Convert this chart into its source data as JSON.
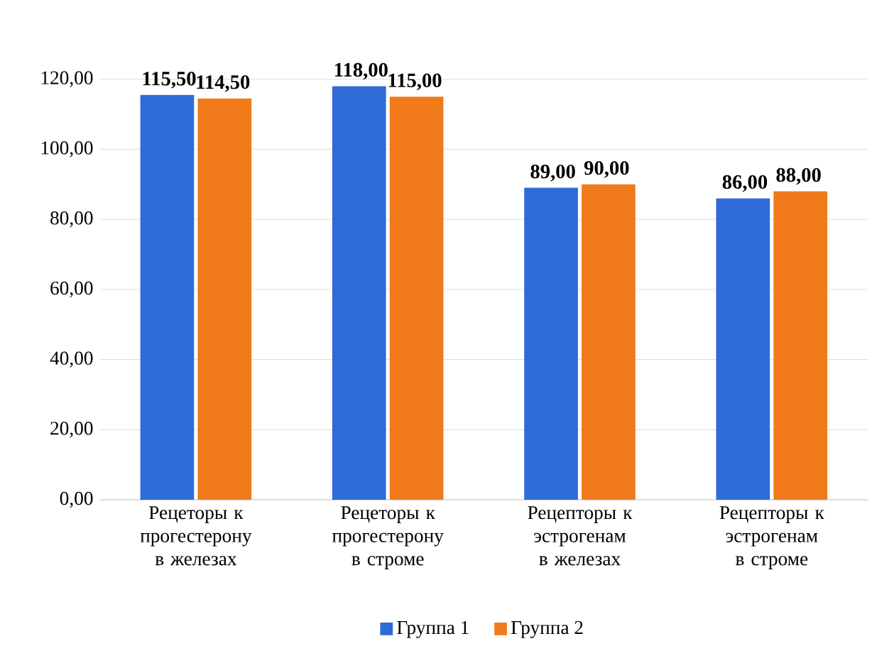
{
  "chart_data": {
    "type": "bar",
    "categories": [
      "Рецеторы к прогестерону в железах",
      "Рецеторы к прогестерону в строме",
      "Рецепторы к эстрогенам в железах",
      "Рецепторы к эстрогенам в строме"
    ],
    "series": [
      {
        "name": "Группа 1",
        "color": "#2e6bd6",
        "values": [
          115.5,
          118,
          89,
          86
        ],
        "value_labels": [
          "115,50",
          "118,00",
          "89,00",
          "86,00"
        ]
      },
      {
        "name": "Группа 2",
        "color": "#f07a1a",
        "values": [
          114.5,
          115,
          90,
          88
        ],
        "value_labels": [
          "114,50",
          "115,00",
          "90,00",
          "88,00"
        ]
      }
    ],
    "ylim": [
      0,
      120
    ],
    "yticks": [
      {
        "value": 0,
        "label": "0,00"
      },
      {
        "value": 20,
        "label": "20,00"
      },
      {
        "value": 40,
        "label": "40,00"
      },
      {
        "value": 60,
        "label": "60,00"
      },
      {
        "value": 80,
        "label": "80,00"
      },
      {
        "value": 100,
        "label": "100,00"
      },
      {
        "value": 120,
        "label": "120,00"
      }
    ],
    "grid": "y",
    "legend": "bottom"
  }
}
